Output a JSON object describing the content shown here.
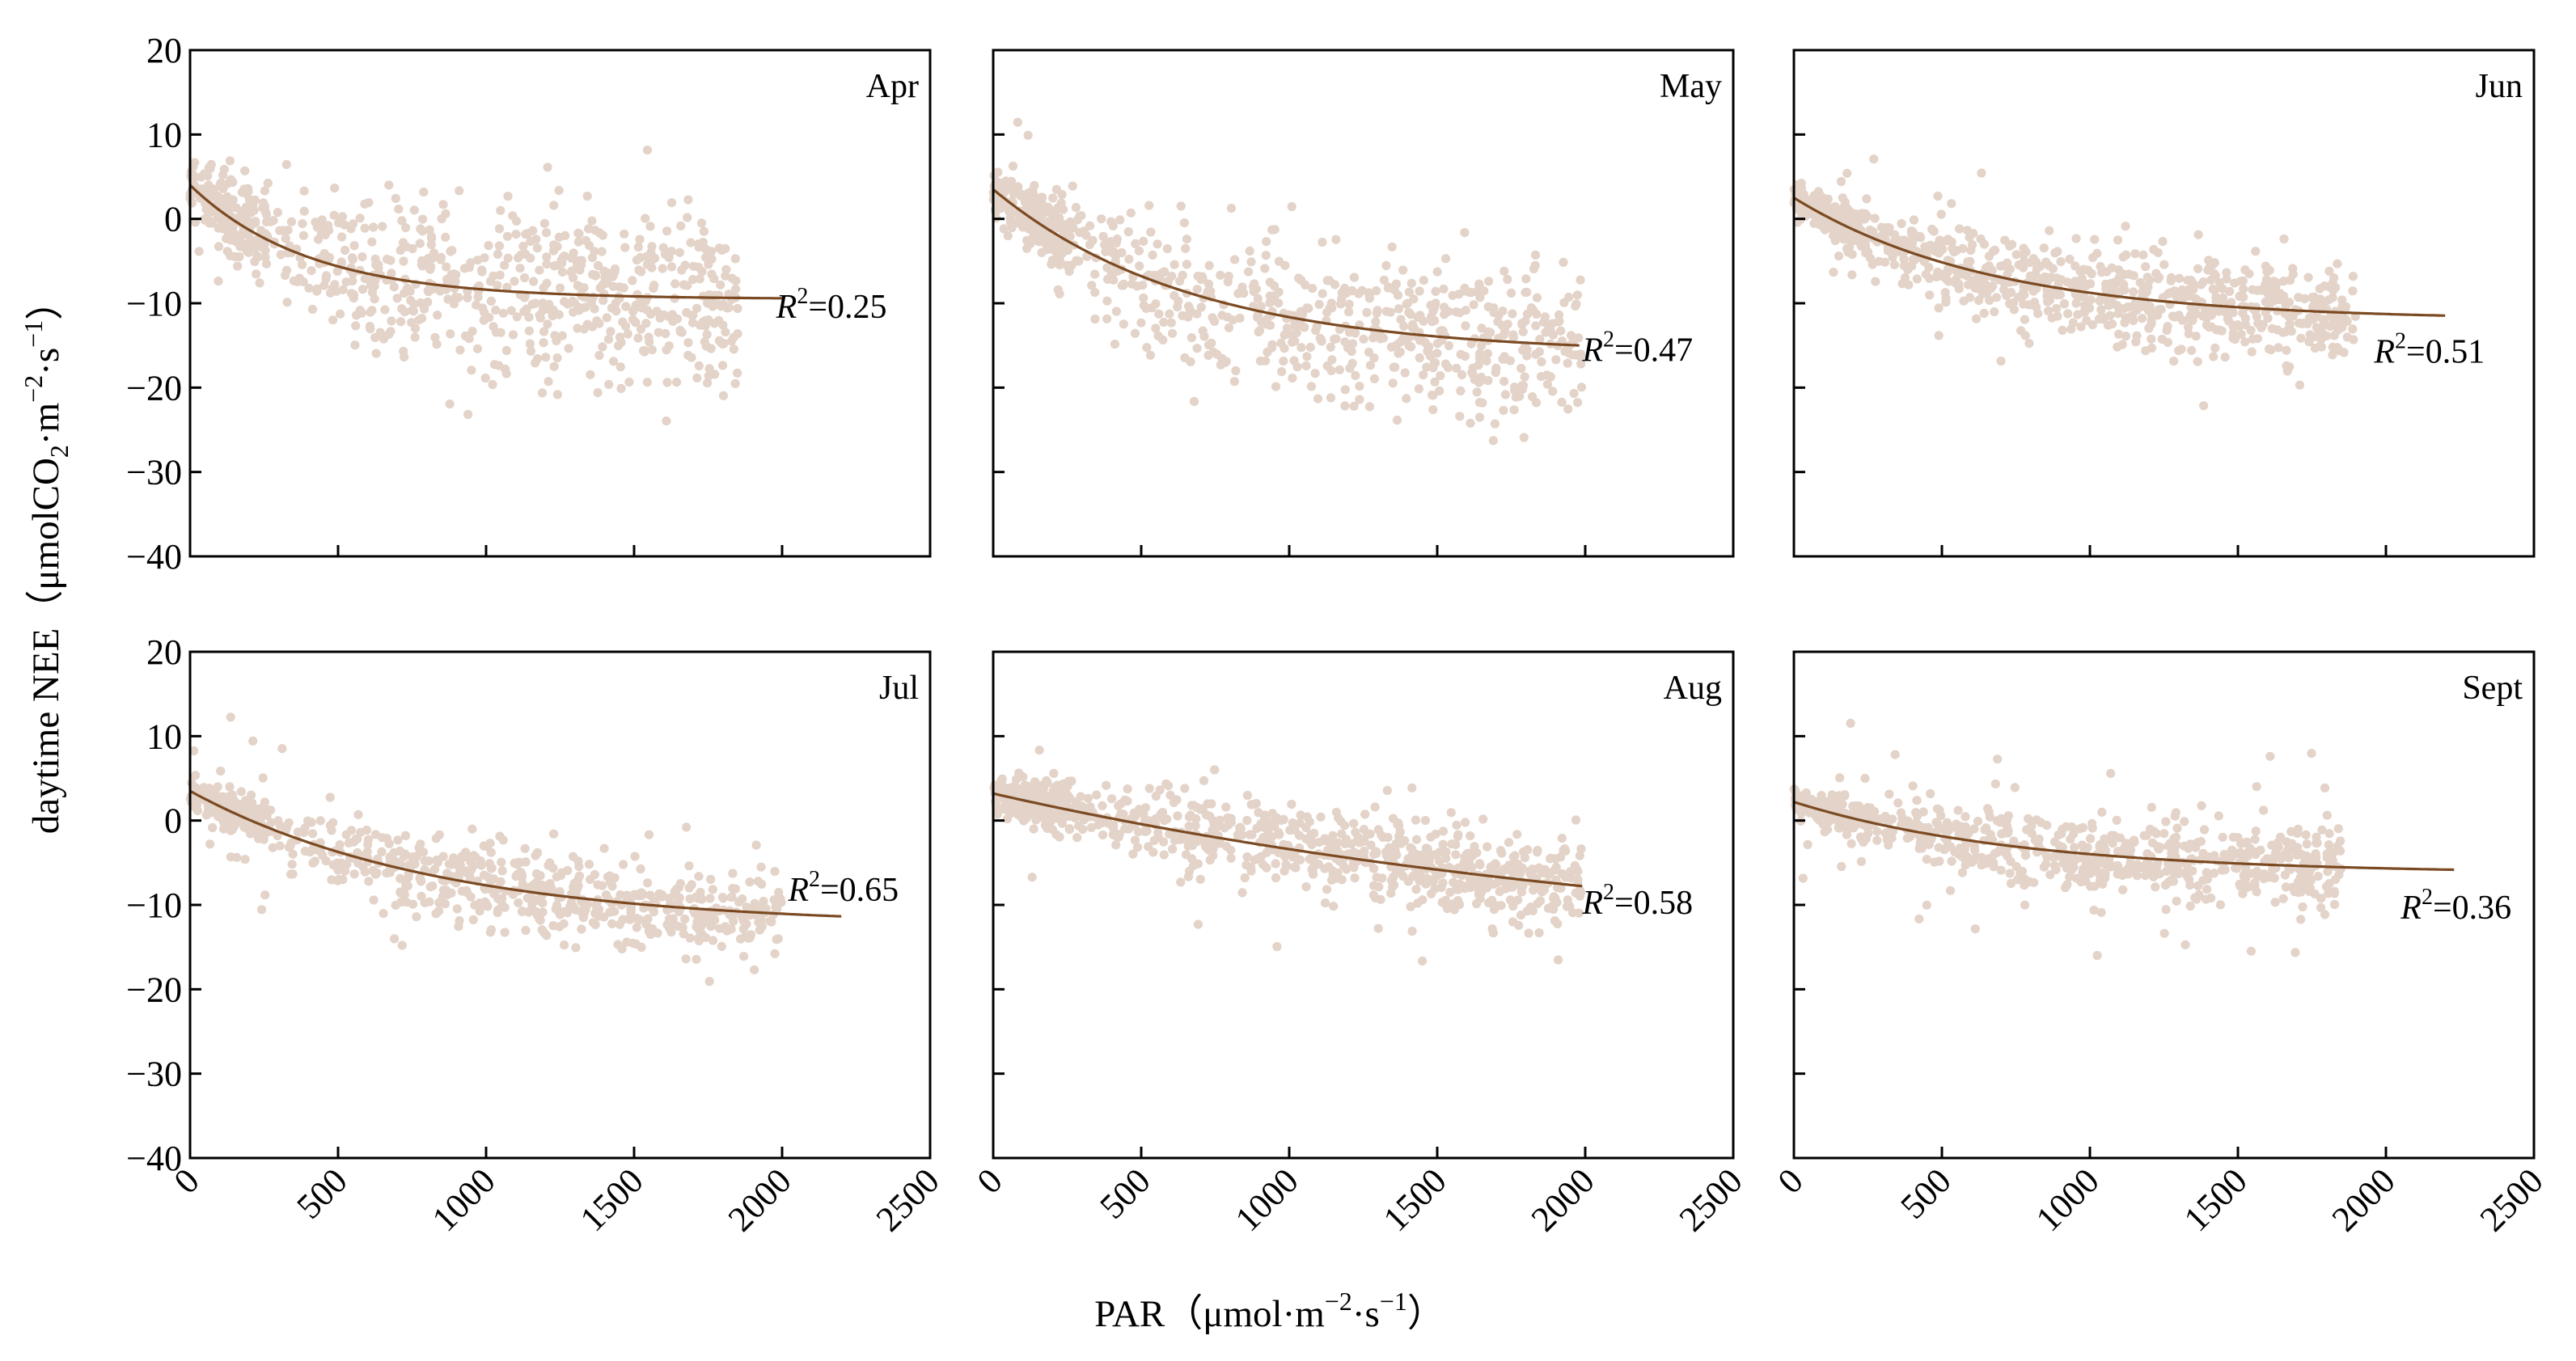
{
  "figure": {
    "ylabel_main": "daytime NEE（μmolCO",
    "ylabel_sub": "2",
    "ylabel_mid": "·m",
    "ylabel_sup1": "−2",
    "ylabel_mid2": "·s",
    "ylabel_sup2": "−1",
    "ylabel_end": "）",
    "xlabel_main": "PAR（μmol·m",
    "xlabel_sup1": "−2",
    "xlabel_mid": "·s",
    "xlabel_sup2": "−1",
    "xlabel_end": "）",
    "r2_prefix": "R",
    "r2_sup": "2",
    "colors": {
      "points": "#e3d3c8",
      "fit": "#7b4a22",
      "axis": "#000000"
    }
  },
  "chart_data": [
    {
      "type": "scatter",
      "month": "Apr",
      "r2": "=0.25",
      "xlim": [
        0,
        2500
      ],
      "ylim": [
        -40,
        20
      ],
      "xticks": [
        "0",
        "500",
        "1000",
        "1500",
        "2000",
        "2500"
      ],
      "yticks": [
        "20",
        "10",
        "0",
        "−10",
        "−20",
        "−30",
        "−40"
      ],
      "fit": {
        "a": 4,
        "b": -13.5,
        "k": 0.0025,
        "xmax": 2000
      },
      "scatter": {
        "n": 800,
        "seed": 11,
        "xmax": 1850,
        "center": [
          3,
          -9
        ],
        "spread": 9,
        "r2_x": 1980,
        "r2_y": -10.3
      }
    },
    {
      "type": "scatter",
      "month": "May",
      "r2": "=0.47",
      "xlim": [
        0,
        2500
      ],
      "ylim": [
        -40,
        20
      ],
      "xticks": [
        "0",
        "500",
        "1000",
        "1500",
        "2000",
        "2500"
      ],
      "yticks": [
        "20",
        "10",
        "0",
        "−10",
        "−20",
        "−30",
        "−40"
      ],
      "fit": {
        "a": 3.5,
        "b": -19.5,
        "k": 0.0015,
        "xmax": 1980
      },
      "scatter": {
        "n": 800,
        "seed": 23,
        "xmax": 1990,
        "center": [
          3,
          -14
        ],
        "spread": 8,
        "r2_x": 1990,
        "r2_y": -15.4
      }
    },
    {
      "type": "scatter",
      "month": "Jun",
      "r2": "=0.51",
      "xlim": [
        0,
        2500
      ],
      "ylim": [
        -40,
        20
      ],
      "xticks": [
        "0",
        "500",
        "1000",
        "1500",
        "2000",
        "2500"
      ],
      "yticks": [
        "20",
        "10",
        "0",
        "−10",
        "−20",
        "−30",
        "−40"
      ],
      "fit": {
        "a": 2.5,
        "b": -14.5,
        "k": 0.0015,
        "xmax": 2200
      },
      "scatter": {
        "n": 900,
        "seed": 37,
        "xmax": 1900,
        "center": [
          2,
          -11
        ],
        "spread": 5,
        "r2_x": 1960,
        "r2_y": -15.6
      }
    },
    {
      "type": "scatter",
      "month": "Jul",
      "r2": "=0.65",
      "xlim": [
        0,
        2500
      ],
      "ylim": [
        -40,
        20
      ],
      "xticks": [
        "0",
        "500",
        "1000",
        "1500",
        "2000",
        "2500"
      ],
      "yticks": [
        "20",
        "10",
        "0",
        "−10",
        "−20",
        "−30",
        "−40"
      ],
      "fit": {
        "a": 3.5,
        "b": -16,
        "k": 0.0012,
        "xmax": 2200
      },
      "scatter": {
        "n": 800,
        "seed": 53,
        "xmax": 2000,
        "center": [
          3,
          -11
        ],
        "spread": 4.5,
        "r2_x": 2020,
        "r2_y": -8.1
      }
    },
    {
      "type": "scatter",
      "month": "Aug",
      "r2": "=0.58",
      "xlim": [
        0,
        2500
      ],
      "ylim": [
        -40,
        20
      ],
      "xticks": [
        "0",
        "500",
        "1000",
        "1500",
        "2000",
        "2500"
      ],
      "yticks": [
        "20",
        "10",
        "0",
        "−10",
        "−20",
        "−30",
        "−40"
      ],
      "fit": {
        "a": 3.2,
        "b": -20,
        "k": 0.0004,
        "xmax": 1990
      },
      "scatter": {
        "n": 900,
        "seed": 71,
        "xmax": 1990,
        "center": [
          3,
          -9
        ],
        "spread": 4.5,
        "r2_x": 1990,
        "r2_y": -9.6
      }
    },
    {
      "type": "scatter",
      "month": "Sept",
      "r2": "=0.36",
      "xlim": [
        0,
        2500
      ],
      "ylim": [
        -40,
        20
      ],
      "xticks": [
        "0",
        "500",
        "1000",
        "1500",
        "2000",
        "2500"
      ],
      "yticks": [
        "20",
        "10",
        "0",
        "−10",
        "−20",
        "−30",
        "−40"
      ],
      "fit": {
        "a": 2.2,
        "b": -8.5,
        "k": 0.0013,
        "xmax": 2230
      },
      "scatter": {
        "n": 800,
        "seed": 89,
        "xmax": 1850,
        "center": [
          2,
          -5
        ],
        "spread": 4,
        "r2_x": 2050,
        "r2_y": -10.2
      }
    }
  ]
}
